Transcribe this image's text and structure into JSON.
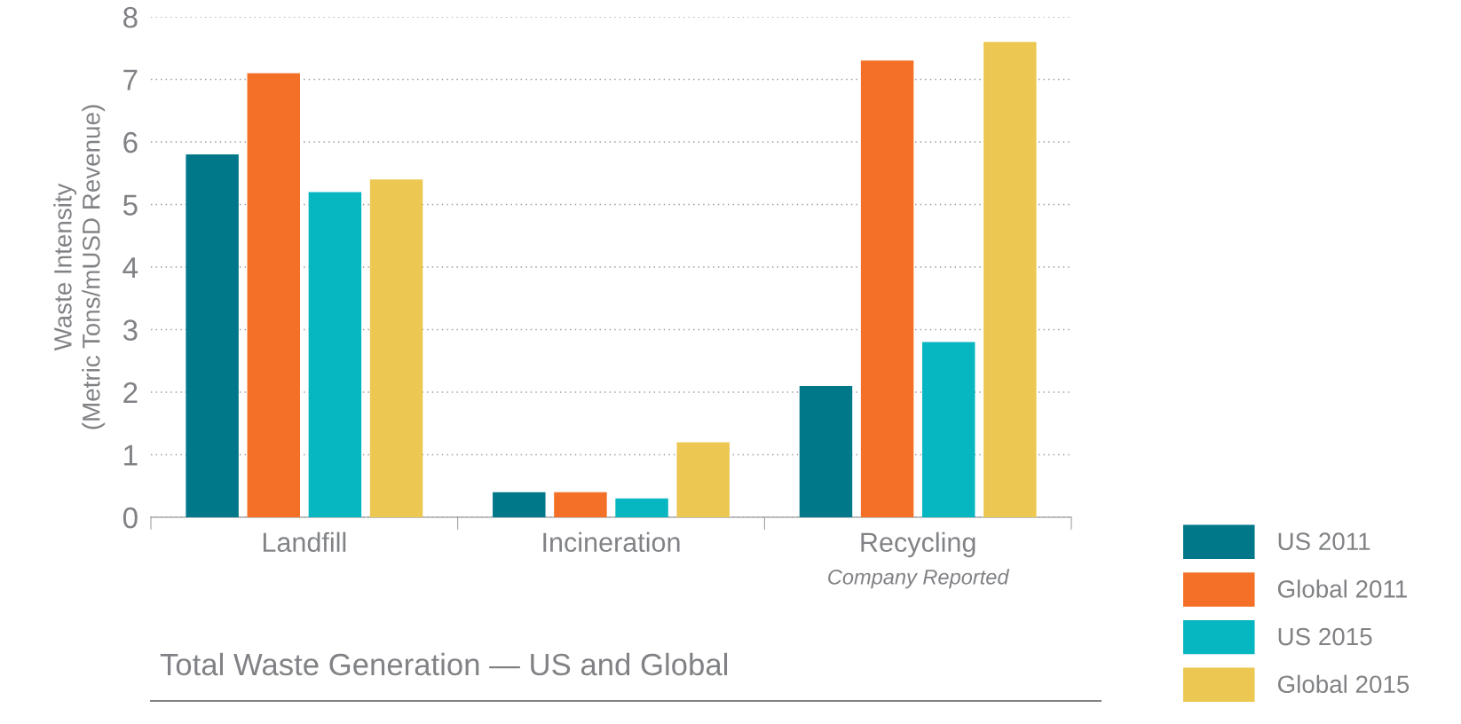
{
  "chart_data": {
    "type": "bar",
    "title": "Total Waste Generation — US and Global",
    "ylabel": "Waste Intensity\n(Metric Tons/mUSD Revenue)",
    "categories": [
      "Landfill",
      "Incineration",
      "Recycling"
    ],
    "series": [
      {
        "name": "US 2011",
        "color": "#00788a",
        "values": [
          5.8,
          0.4,
          2.1
        ]
      },
      {
        "name": "Global 2011",
        "color": "#f37026",
        "values": [
          7.1,
          0.4,
          7.3
        ]
      },
      {
        "name": "US 2015",
        "color": "#06b6c0",
        "values": [
          5.2,
          0.3,
          2.8
        ]
      },
      {
        "name": "Global 2015",
        "color": "#ecc752",
        "values": [
          5.4,
          1.2,
          7.6
        ]
      }
    ],
    "annotations": [
      "Company Reported"
    ],
    "ylim": [
      0,
      8
    ],
    "yticks": [
      0,
      1,
      2,
      3,
      4,
      5,
      6,
      7,
      8
    ],
    "grid": "y",
    "legend": "bottom right"
  }
}
